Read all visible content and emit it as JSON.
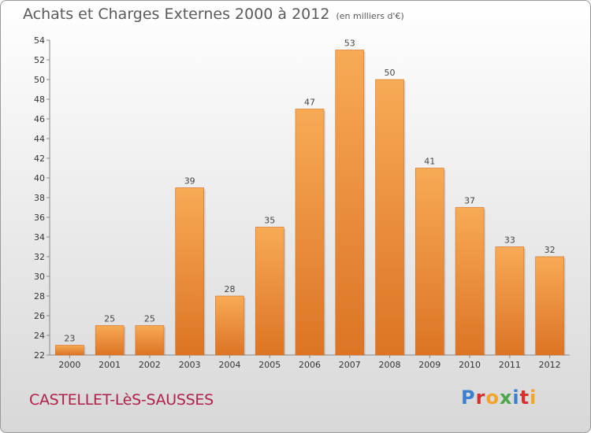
{
  "header": {
    "title": "Achats et Charges Externes 2000 à 2012",
    "unit": "(en milliers d'€)"
  },
  "footer": {
    "place": "CASTELLET-LèS-SAUSSES",
    "brand": [
      "P",
      "r",
      "o",
      "x",
      "i",
      "t",
      "i"
    ],
    "brand_colors": [
      "#3b7fd0",
      "#d3302f",
      "#f2a52a",
      "#4aa64a",
      "#3b7fd0",
      "#d3302f",
      "#f2a52a"
    ]
  },
  "chart_data": {
    "type": "bar",
    "categories": [
      "2000",
      "2001",
      "2002",
      "2003",
      "2004",
      "2005",
      "2006",
      "2007",
      "2008",
      "2009",
      "2010",
      "2011",
      "2012"
    ],
    "values": [
      23,
      25,
      25,
      39,
      28,
      35,
      47,
      53,
      50,
      41,
      37,
      33,
      32
    ],
    "data_labels": [
      "23",
      "25",
      "25",
      "39",
      "28",
      "35",
      "47",
      "53",
      "50",
      "41",
      "37",
      "33",
      "32"
    ],
    "title": "Achats et Charges Externes 2000 à 2012",
    "ylim": [
      22,
      54
    ],
    "yticks": [
      22,
      24,
      26,
      28,
      30,
      32,
      34,
      36,
      38,
      40,
      42,
      44,
      46,
      48,
      50,
      52,
      54
    ],
    "grid": false,
    "legend": "none",
    "bar_color": "#f0963a"
  }
}
